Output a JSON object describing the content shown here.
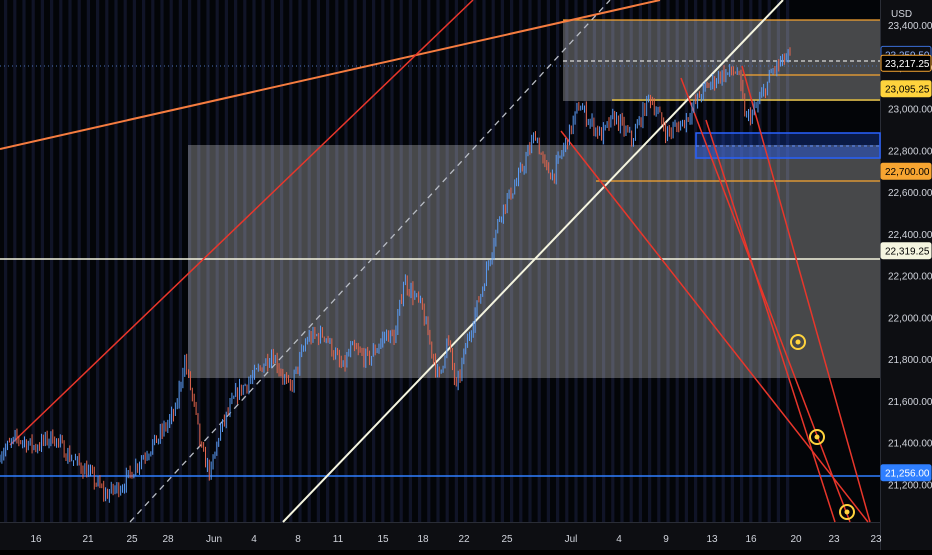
{
  "chart_data": {
    "type": "candlestick",
    "symbol": "",
    "currency": "USD",
    "ylim": [
      21020,
      23520
    ],
    "y_ticks": [
      21200,
      21400,
      21600,
      21800,
      22000,
      22200,
      22400,
      22600,
      22800,
      23000,
      23200,
      23400
    ],
    "y_tick_labels": [
      "21,200.00",
      "21,400.00",
      "21,600.00",
      "21,800.00",
      "22,000.00",
      "22,200.00",
      "22,400.00",
      "22,600.00",
      "22,800.00",
      "23,000.00",
      "23,200.00",
      "23,400.00"
    ],
    "x_tick_labels": [
      "16",
      "21",
      "25",
      "28",
      "Jun",
      "4",
      "8",
      "11",
      "15",
      "18",
      "22",
      "25",
      "Jul",
      "4",
      "9",
      "13",
      "16",
      "20",
      "23",
      "23"
    ],
    "price_labels": [
      {
        "value": 23259.5,
        "text": "23,259.50",
        "role": "last-price"
      },
      {
        "value": 23217.25,
        "text": "23,217.25",
        "role": "level"
      },
      {
        "value": 23095.25,
        "text": "23,095.25",
        "role": "level"
      },
      {
        "value": 22700,
        "text": "22,700.00",
        "role": "level"
      },
      {
        "value": 22319.25,
        "text": "22,319.25",
        "role": "level"
      },
      {
        "value": 21256,
        "text": "21,256.00",
        "role": "level"
      }
    ],
    "price_path": [
      [
        0,
        21350
      ],
      [
        0.02,
        21420
      ],
      [
        0.04,
        21380
      ],
      [
        0.06,
        21430
      ],
      [
        0.08,
        21330
      ],
      [
        0.1,
        21260
      ],
      [
        0.12,
        21150
      ],
      [
        0.14,
        21200
      ],
      [
        0.16,
        21320
      ],
      [
        0.18,
        21420
      ],
      [
        0.2,
        21550
      ],
      [
        0.21,
        21800
      ],
      [
        0.22,
        21600
      ],
      [
        0.23,
        21350
      ],
      [
        0.24,
        21250
      ],
      [
        0.25,
        21450
      ],
      [
        0.27,
        21640
      ],
      [
        0.29,
        21720
      ],
      [
        0.31,
        21830
      ],
      [
        0.33,
        21650
      ],
      [
        0.35,
        21900
      ],
      [
        0.37,
        21920
      ],
      [
        0.39,
        21750
      ],
      [
        0.4,
        21850
      ],
      [
        0.42,
        21800
      ],
      [
        0.44,
        21920
      ],
      [
        0.45,
        21900
      ],
      [
        0.46,
        22180
      ],
      [
        0.48,
        22050
      ],
      [
        0.5,
        21700
      ],
      [
        0.51,
        21900
      ],
      [
        0.52,
        21650
      ],
      [
        0.53,
        21850
      ],
      [
        0.55,
        22150
      ],
      [
        0.57,
        22500
      ],
      [
        0.59,
        22660
      ],
      [
        0.61,
        22880
      ],
      [
        0.62,
        22720
      ],
      [
        0.63,
        22680
      ],
      [
        0.645,
        22840
      ],
      [
        0.66,
        23020
      ],
      [
        0.67,
        22950
      ],
      [
        0.685,
        22870
      ],
      [
        0.7,
        22960
      ],
      [
        0.72,
        22850
      ],
      [
        0.74,
        23060
      ],
      [
        0.76,
        22880
      ],
      [
        0.78,
        22940
      ],
      [
        0.8,
        23080
      ],
      [
        0.82,
        23160
      ],
      [
        0.84,
        23180
      ],
      [
        0.85,
        22950
      ],
      [
        0.86,
        22990
      ],
      [
        0.87,
        23080
      ],
      [
        0.88,
        23180
      ],
      [
        0.895,
        23240
      ],
      [
        0.9,
        23250
      ]
    ]
  }
}
